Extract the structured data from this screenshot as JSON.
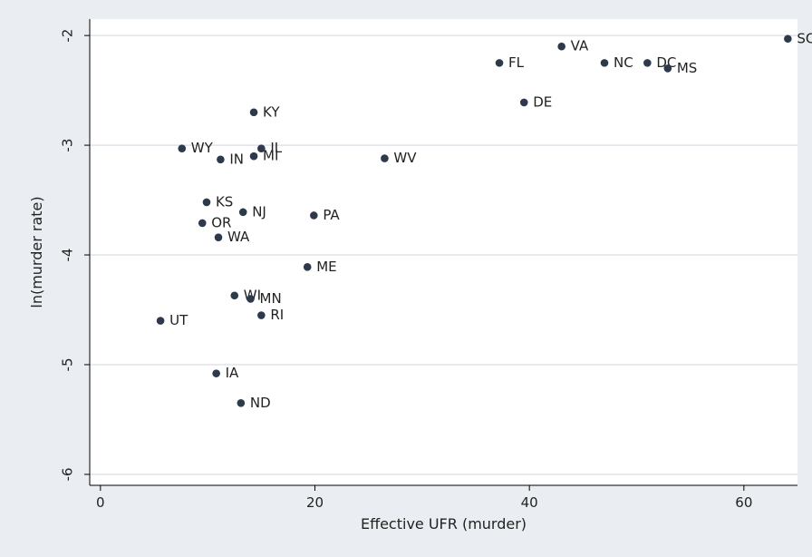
{
  "chart_data": {
    "type": "scatter",
    "xlabel": "Effective UFR (murder)",
    "ylabel": "ln(murder rate)",
    "xlim": [
      -1,
      65
    ],
    "ylim": [
      -6.1,
      -1.85
    ],
    "x_ticks": [
      0,
      20,
      40,
      60
    ],
    "y_ticks": [
      -2,
      -3,
      -4,
      -5,
      -6
    ],
    "x_tick_labels": [
      "0",
      "20",
      "40",
      "60"
    ],
    "y_tick_labels": [
      "-2",
      "-3",
      "-4",
      "-5",
      "-6"
    ],
    "grid": "horizontal",
    "legend": "none",
    "colors": {
      "point": "#2e3a4c",
      "grid": "#ffffff",
      "plot_bg": "#ffffff",
      "outer_bg": "#eaeef2",
      "axis": "#000000"
    },
    "points": [
      {
        "label": "SC",
        "x": 64.1,
        "y": -2.03
      },
      {
        "label": "VA",
        "x": 43.0,
        "y": -2.1
      },
      {
        "label": "FL",
        "x": 37.2,
        "y": -2.25
      },
      {
        "label": "NC",
        "x": 47.0,
        "y": -2.25
      },
      {
        "label": "DC",
        "x": 51.0,
        "y": -2.25
      },
      {
        "label": "MS",
        "x": 52.9,
        "y": -2.3
      },
      {
        "label": "DE",
        "x": 39.5,
        "y": -2.61
      },
      {
        "label": "KY",
        "x": 14.3,
        "y": -2.7
      },
      {
        "label": "WY",
        "x": 7.6,
        "y": -3.03
      },
      {
        "label": "IL",
        "x": 15.0,
        "y": -3.03
      },
      {
        "label": "MI",
        "x": 14.3,
        "y": -3.1
      },
      {
        "label": "IN",
        "x": 11.2,
        "y": -3.13
      },
      {
        "label": "WV",
        "x": 26.5,
        "y": -3.12
      },
      {
        "label": "KS",
        "x": 9.9,
        "y": -3.52
      },
      {
        "label": "NJ",
        "x": 13.3,
        "y": -3.61
      },
      {
        "label": "PA",
        "x": 19.9,
        "y": -3.64
      },
      {
        "label": "OR",
        "x": 9.5,
        "y": -3.71
      },
      {
        "label": "WA",
        "x": 11.0,
        "y": -3.84
      },
      {
        "label": "ME",
        "x": 19.3,
        "y": -4.11
      },
      {
        "label": "WI",
        "x": 12.5,
        "y": -4.37
      },
      {
        "label": "MN",
        "x": 14.0,
        "y": -4.4
      },
      {
        "label": "RI",
        "x": 15.0,
        "y": -4.55
      },
      {
        "label": "UT",
        "x": 5.6,
        "y": -4.6
      },
      {
        "label": "IA",
        "x": 10.8,
        "y": -5.08
      },
      {
        "label": "ND",
        "x": 13.1,
        "y": -5.35
      }
    ]
  }
}
